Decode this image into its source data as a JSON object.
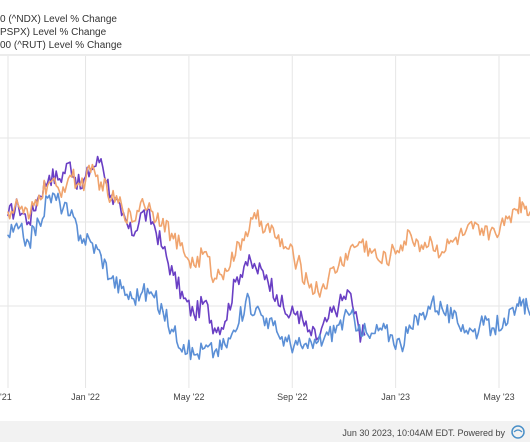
{
  "colors": {
    "background": "#ffffff",
    "gridline": "#e6e6e6",
    "plot_border": "#d9d9d9",
    "footer_background": "#f2f2f2"
  },
  "chart_data": {
    "type": "line",
    "title": "",
    "xlabel": "",
    "ylabel": "",
    "x_unit": "month index (0 = Oct '21)",
    "x_ticks": [
      {
        "x": 0,
        "label": "'21"
      },
      {
        "x": 3,
        "label": "Jan '22"
      },
      {
        "x": 7,
        "label": "May '22"
      },
      {
        "x": 11,
        "label": "Sep '22"
      },
      {
        "x": 15,
        "label": "Jan '23"
      },
      {
        "x": 19,
        "label": "May '23"
      }
    ],
    "xlim": [
      0,
      20.2
    ],
    "ylim": [
      0,
      100
    ],
    "y_axis_labels_shown": false,
    "grid": true,
    "legend_position": "top-left",
    "series": [
      {
        "name": "0 (^NDX) Level % Change",
        "color": "#6a3fc4",
        "points": [
          [
            0,
            52
          ],
          [
            0.4,
            55
          ],
          [
            0.8,
            50
          ],
          [
            1.2,
            58
          ],
          [
            1.6,
            64
          ],
          [
            2.0,
            63
          ],
          [
            2.4,
            68
          ],
          [
            2.8,
            60
          ],
          [
            3.2,
            66
          ],
          [
            3.6,
            69
          ],
          [
            4.0,
            58
          ],
          [
            4.4,
            52
          ],
          [
            4.8,
            46
          ],
          [
            5.2,
            53
          ],
          [
            5.6,
            50
          ],
          [
            6.0,
            42
          ],
          [
            6.4,
            34
          ],
          [
            6.8,
            27
          ],
          [
            7.2,
            22
          ],
          [
            7.6,
            26
          ],
          [
            8.0,
            18
          ],
          [
            8.4,
            20
          ],
          [
            8.8,
            32
          ],
          [
            9.2,
            38
          ],
          [
            9.6,
            36
          ],
          [
            10.0,
            34
          ],
          [
            10.4,
            28
          ],
          [
            10.8,
            22
          ],
          [
            11.2,
            23
          ],
          [
            11.6,
            17
          ],
          [
            12.0,
            15
          ],
          [
            12.4,
            21
          ],
          [
            12.8,
            25
          ],
          [
            13.2,
            29
          ],
          [
            13.6,
            17
          ],
          [
            13.8,
            16
          ]
        ]
      },
      {
        "name": "PSPX) Level % Change",
        "color": "#f0a46e",
        "points": [
          [
            0,
            53
          ],
          [
            0.4,
            55
          ],
          [
            0.8,
            51
          ],
          [
            1.2,
            58
          ],
          [
            1.6,
            62
          ],
          [
            2.0,
            59
          ],
          [
            2.4,
            64
          ],
          [
            2.8,
            61
          ],
          [
            3.2,
            65
          ],
          [
            3.6,
            62
          ],
          [
            4.0,
            57
          ],
          [
            4.4,
            55
          ],
          [
            4.8,
            50
          ],
          [
            5.2,
            57
          ],
          [
            5.6,
            53
          ],
          [
            6.0,
            51
          ],
          [
            6.4,
            45
          ],
          [
            6.8,
            41
          ],
          [
            7.2,
            37
          ],
          [
            7.6,
            41
          ],
          [
            8.0,
            33
          ],
          [
            8.4,
            36
          ],
          [
            8.8,
            40
          ],
          [
            9.2,
            47
          ],
          [
            9.6,
            51
          ],
          [
            10.0,
            49
          ],
          [
            10.4,
            45
          ],
          [
            10.8,
            42
          ],
          [
            11.2,
            38
          ],
          [
            11.6,
            32
          ],
          [
            12.0,
            29
          ],
          [
            12.4,
            33
          ],
          [
            12.8,
            37
          ],
          [
            13.2,
            41
          ],
          [
            13.6,
            44
          ],
          [
            14.0,
            42
          ],
          [
            14.4,
            38
          ],
          [
            14.8,
            40
          ],
          [
            15.2,
            43
          ],
          [
            15.6,
            46
          ],
          [
            16.0,
            43
          ],
          [
            16.4,
            44
          ],
          [
            16.8,
            41
          ],
          [
            17.2,
            44
          ],
          [
            17.6,
            46
          ],
          [
            18.0,
            48
          ],
          [
            18.4,
            46
          ],
          [
            18.8,
            48
          ],
          [
            19.2,
            49
          ],
          [
            19.6,
            54
          ],
          [
            19.9,
            56
          ],
          [
            20.2,
            53
          ]
        ]
      },
      {
        "name": "00 (^RUT) Level % Change",
        "color": "#5b8fd6",
        "points": [
          [
            0,
            46
          ],
          [
            0.4,
            48
          ],
          [
            0.8,
            44
          ],
          [
            1.2,
            50
          ],
          [
            1.6,
            58
          ],
          [
            2.0,
            56
          ],
          [
            2.4,
            52
          ],
          [
            2.8,
            46
          ],
          [
            3.2,
            44
          ],
          [
            3.6,
            40
          ],
          [
            4.0,
            33
          ],
          [
            4.4,
            30
          ],
          [
            4.8,
            27
          ],
          [
            5.2,
            29
          ],
          [
            5.6,
            28
          ],
          [
            6.0,
            23
          ],
          [
            6.4,
            17
          ],
          [
            6.8,
            13
          ],
          [
            7.2,
            10
          ],
          [
            7.6,
            12
          ],
          [
            8.0,
            11
          ],
          [
            8.4,
            13
          ],
          [
            8.8,
            17
          ],
          [
            9.2,
            26
          ],
          [
            9.6,
            24
          ],
          [
            10.0,
            21
          ],
          [
            10.4,
            17
          ],
          [
            10.8,
            14
          ],
          [
            11.2,
            13
          ],
          [
            11.6,
            12
          ],
          [
            12.0,
            14
          ],
          [
            12.4,
            16
          ],
          [
            12.8,
            19
          ],
          [
            13.2,
            22
          ],
          [
            13.6,
            19
          ],
          [
            14.0,
            15
          ],
          [
            14.4,
            18
          ],
          [
            14.8,
            16
          ],
          [
            15.2,
            13
          ],
          [
            15.6,
            18
          ],
          [
            16.0,
            22
          ],
          [
            16.4,
            26
          ],
          [
            16.8,
            24
          ],
          [
            17.2,
            21
          ],
          [
            17.6,
            19
          ],
          [
            18.0,
            17
          ],
          [
            18.4,
            19
          ],
          [
            18.8,
            18
          ],
          [
            19.2,
            21
          ],
          [
            19.6,
            22
          ],
          [
            19.9,
            26
          ],
          [
            20.2,
            22
          ]
        ]
      }
    ]
  },
  "footer": {
    "text": "Jun 30 2023, 10:04AM EDT. Powered by"
  }
}
